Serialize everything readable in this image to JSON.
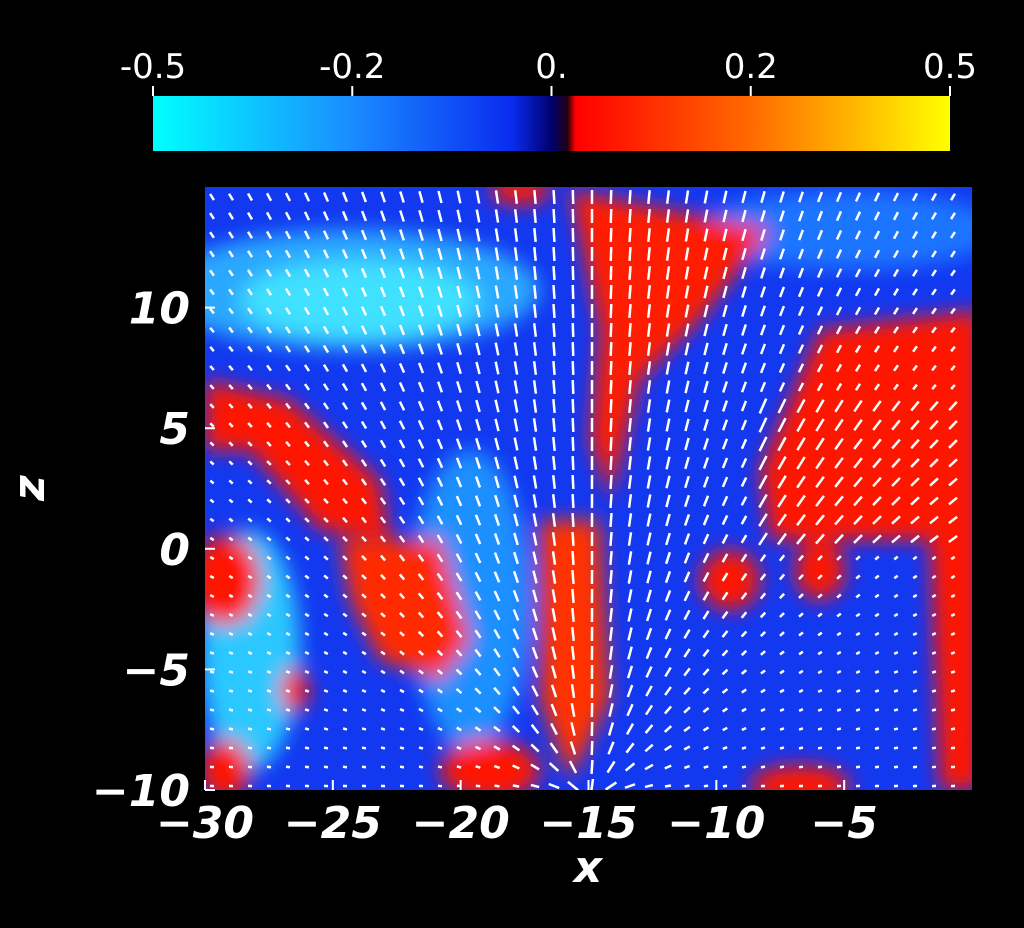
{
  "chart_data": {
    "type": "vector-field",
    "colorbar": {
      "range": [
        -0.5,
        0.5
      ],
      "ticks": [
        -0.5,
        -0.2,
        {
          "value": 0,
          "label": "0."
        },
        0.2,
        0.5
      ]
    },
    "xlabel": "x",
    "ylabel": "z",
    "xlim": [
      -30,
      0
    ],
    "ylim": [
      -10,
      15
    ],
    "xticks": [
      {
        "value": -30,
        "label": "−30"
      },
      {
        "value": -25,
        "label": "−25"
      },
      {
        "value": -20,
        "label": "−20"
      },
      {
        "value": -15,
        "label": "−15"
      },
      {
        "value": -10,
        "label": "−10"
      },
      {
        "value": -5,
        "label": "−5"
      }
    ],
    "yticks": [
      {
        "value": -10,
        "label": "−10"
      },
      {
        "value": -5,
        "label": "−5"
      },
      0,
      5,
      10
    ]
  }
}
